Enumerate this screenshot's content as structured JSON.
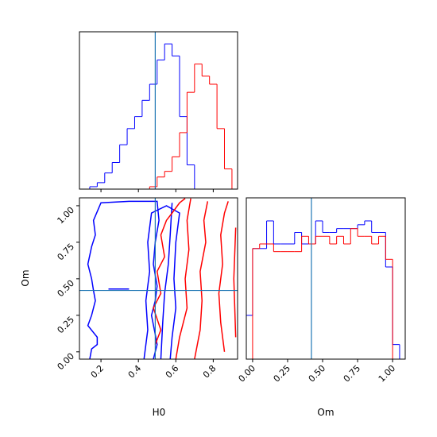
{
  "chart_data": [
    {
      "type": "histogram",
      "bins": [
        0.1,
        0.14,
        0.18,
        0.22,
        0.26,
        0.3,
        0.34,
        0.38,
        0.42,
        0.46,
        0.5,
        0.54,
        0.58,
        0.62,
        0.66,
        0.7,
        0.74,
        0.78,
        0.82,
        0.86,
        0.9
      ],
      "series": [
        {
          "color": "#0000ff",
          "values": [
            0,
            3,
            8,
            20,
            33,
            55,
            75,
            90,
            110,
            130,
            160,
            180,
            165,
            90,
            30,
            0,
            0,
            0,
            0,
            0
          ]
        },
        {
          "color": "#ff0000",
          "values": [
            0,
            0,
            0,
            0,
            0,
            0,
            0,
            0,
            0,
            3,
            15,
            22,
            40,
            70,
            120,
            155,
            140,
            130,
            75,
            25
          ]
        }
      ],
      "xlim": [
        0.085,
        0.93
      ],
      "xticks": [
        0.2,
        0.4,
        0.6,
        0.8
      ],
      "show_xtick_labels": false,
      "ylim": [
        0,
        195
      ],
      "axvline": 0.49,
      "line_color": "#1f77b4"
    },
    {
      "type": "contour",
      "xlabel": "H0",
      "ylabel": "Om",
      "series": [
        {
          "color": "#0000ff",
          "lines": [
            {
              "x": [
                0.14,
                0.15,
                0.18,
                0.18,
                0.13,
                0.15,
                0.17,
                0.16,
                0.15,
                0.13,
                0.15,
                0.17,
                0.16,
                0.2,
                0.35,
                0.5,
                0.51,
                0.49,
                0.48,
                0.5,
                0.49,
                0.47,
                0.49,
                0.5,
                0.48
              ],
              "y": [
                -0.05,
                0.02,
                0.05,
                0.1,
                0.18,
                0.25,
                0.35,
                0.42,
                0.5,
                0.6,
                0.72,
                0.8,
                0.9,
                1.02,
                1.03,
                1.03,
                0.9,
                0.75,
                0.6,
                0.45,
                0.35,
                0.25,
                0.12,
                0.05,
                -0.05
              ]
            },
            {
              "x": [
                0.43,
                0.45,
                0.44,
                0.46,
                0.45,
                0.47,
                0.55,
                0.62,
                0.6,
                0.59,
                0.6,
                0.58,
                0.57
              ],
              "y": [
                -0.05,
                0.15,
                0.35,
                0.55,
                0.75,
                0.95,
                1.0,
                0.95,
                0.75,
                0.5,
                0.3,
                0.1,
                -0.05
              ]
            },
            {
              "x": [
                0.52,
                0.53,
                0.54,
                0.56,
                0.57,
                0.58
              ],
              "y": [
                -0.05,
                0.2,
                0.4,
                0.6,
                0.8,
                1.02
              ]
            },
            {
              "x": [
                0.24,
                0.35
              ],
              "y": [
                0.43,
                0.43
              ]
            }
          ]
        },
        {
          "color": "#ff0000",
          "lines": [
            {
              "x": [
                0.49,
                0.52,
                0.48,
                0.52,
                0.5,
                0.54,
                0.52,
                0.55,
                0.58,
                0.62,
                0.65
              ],
              "y": [
                0.05,
                0.15,
                0.3,
                0.4,
                0.55,
                0.65,
                0.8,
                0.9,
                0.95,
                1.02,
                1.05
              ]
            },
            {
              "x": [
                0.6,
                0.62,
                0.66,
                0.65,
                0.67,
                0.66,
                0.68
              ],
              "y": [
                -0.05,
                0.1,
                0.3,
                0.5,
                0.7,
                0.9,
                1.05
              ]
            },
            {
              "x": [
                0.7,
                0.73,
                0.74,
                0.73,
                0.76,
                0.75,
                0.77
              ],
              "y": [
                -0.05,
                0.15,
                0.35,
                0.55,
                0.75,
                0.9,
                1.03
              ]
            },
            {
              "x": [
                0.86,
                0.84,
                0.83,
                0.85,
                0.84,
                0.86,
                0.88
              ],
              "y": [
                0.0,
                0.2,
                0.4,
                0.6,
                0.8,
                0.95,
                1.03
              ]
            },
            {
              "x": [
                0.92,
                0.91,
                0.92
              ],
              "y": [
                0.85,
                0.5,
                0.1
              ]
            }
          ]
        }
      ],
      "xlim": [
        0.085,
        0.93
      ],
      "xticks": [
        0.2,
        0.4,
        0.6,
        0.8
      ],
      "ylim": [
        -0.05,
        1.054
      ],
      "yticks": [
        {
          "value": 0,
          "label": "0.00"
        },
        0.25,
        {
          "value": 0.5,
          "label": "0.50"
        },
        0.75,
        {
          "value": 1,
          "label": "1.00"
        }
      ],
      "axvline": 0.49,
      "axhline": 0.42,
      "line_color": "#1f77b4"
    },
    {
      "type": "histogram",
      "xlabel": "Om",
      "bins": [
        -0.05,
        0.0,
        0.05,
        0.1,
        0.15,
        0.2,
        0.25,
        0.3,
        0.35,
        0.4,
        0.45,
        0.5,
        0.55,
        0.6,
        0.65,
        0.7,
        0.75,
        0.8,
        0.85,
        0.9,
        0.95,
        1.0,
        1.05
      ],
      "series": [
        {
          "color": "#0000ff",
          "values": [
            57,
            144,
            144,
            180,
            150,
            150,
            150,
            165,
            150,
            150,
            180,
            165,
            165,
            170,
            170,
            170,
            175,
            180,
            165,
            165,
            120,
            19
          ]
        },
        {
          "color": "#ff0000",
          "values": [
            0,
            144,
            150,
            150,
            140,
            140,
            140,
            140,
            160,
            150,
            160,
            160,
            150,
            160,
            150,
            170,
            160,
            160,
            150,
            160,
            130,
            0
          ]
        }
      ],
      "xlim": [
        -0.045,
        1.09
      ],
      "xticks": [
        {
          "value": 0,
          "label": "0.00"
        },
        0.25,
        {
          "value": 0.5,
          "label": "0.50"
        },
        0.75,
        {
          "value": 1,
          "label": "1.00"
        }
      ],
      "show_xtick_labels": true,
      "ylim": [
        0,
        210
      ],
      "axvline": 0.42,
      "line_color": "#1f77b4"
    }
  ]
}
